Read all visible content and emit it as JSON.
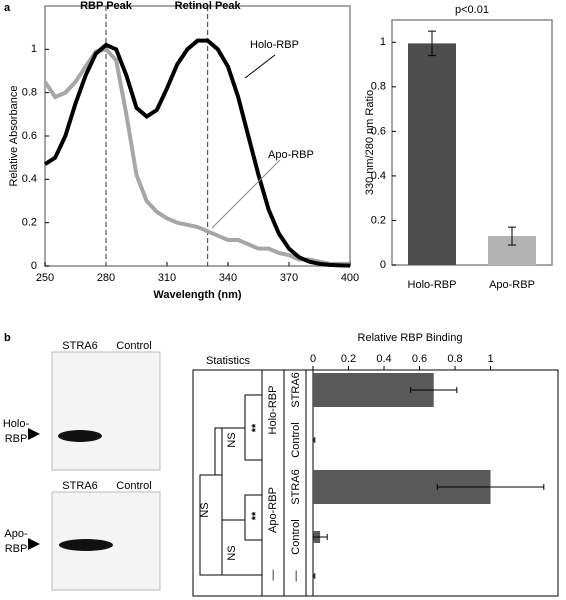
{
  "panel_labels": [
    "a",
    "b"
  ],
  "chart_data": [
    {
      "type": "line",
      "xlabel": "Wavelength (nm)",
      "ylabel": "Relative Absorbance",
      "x": [
        250,
        255,
        260,
        265,
        270,
        275,
        280,
        285,
        290,
        295,
        300,
        305,
        310,
        315,
        320,
        325,
        330,
        335,
        340,
        345,
        350,
        355,
        360,
        365,
        370,
        375,
        380,
        385,
        390,
        395,
        400
      ],
      "series": [
        {
          "name": "Holo-RBP",
          "color": "#000000",
          "values": [
            0.47,
            0.5,
            0.6,
            0.75,
            0.88,
            0.98,
            1.02,
            1.0,
            0.88,
            0.73,
            0.69,
            0.72,
            0.82,
            0.93,
            1.0,
            1.04,
            1.04,
            1.0,
            0.92,
            0.78,
            0.6,
            0.42,
            0.26,
            0.15,
            0.08,
            0.04,
            0.02,
            0.01,
            0.005,
            0.003,
            0.002
          ]
        },
        {
          "name": "Apo-RBP",
          "color": "#a6a6a6",
          "values": [
            0.85,
            0.78,
            0.8,
            0.85,
            0.92,
            0.99,
            1.0,
            0.95,
            0.7,
            0.42,
            0.3,
            0.25,
            0.22,
            0.2,
            0.19,
            0.18,
            0.16,
            0.14,
            0.12,
            0.12,
            0.1,
            0.08,
            0.08,
            0.06,
            0.05,
            0.03,
            0.03,
            0.02,
            0.01,
            0.01,
            0.01
          ]
        }
      ],
      "xlim": [
        250,
        400
      ],
      "ylim": [
        0,
        1.2
      ],
      "xticks": [
        250,
        280,
        310,
        340,
        370,
        400
      ],
      "yticks": [
        0,
        0.2,
        0.4,
        0.6,
        0.8,
        1
      ],
      "annotations": [
        {
          "text": "RBP Peak",
          "x": 280
        },
        {
          "text": "Retinol Peak",
          "x": 330
        }
      ]
    },
    {
      "type": "bar",
      "title": "p<0.01",
      "ylabel": "330 nm/280 nm Ratio",
      "categories": [
        "Holo-RBP",
        "Apo-RBP"
      ],
      "values": [
        0.995,
        0.13
      ],
      "errors": [
        0.055,
        0.04
      ],
      "colors": [
        "#4d4d4d",
        "#b3b3b3"
      ],
      "ylim": [
        0,
        1.1
      ],
      "yticks": [
        0,
        0.2,
        0.4,
        0.6,
        0.8,
        1
      ]
    },
    {
      "type": "barh",
      "title": "Relative RBP Binding",
      "categories": [
        "STRA6",
        "Control",
        "STRA6",
        "Control",
        "—"
      ],
      "groups": [
        "Holo-RBP",
        "Apo-RBP",
        "—"
      ],
      "values": [
        0.68,
        0.005,
        1.0,
        0.04,
        0.005
      ],
      "errors": [
        0.13,
        0.005,
        0.3,
        0.04,
        0.005
      ],
      "color": "#595959",
      "xlim": [
        0,
        1.38
      ],
      "xticks": [
        0,
        0.2,
        0.4,
        0.6,
        0.8,
        1
      ],
      "statistics": {
        "label": "Statistics",
        "marks": [
          "**",
          "NS",
          "**",
          "NS",
          "NS"
        ]
      }
    }
  ],
  "blots": [
    {
      "columns": [
        "STRA6",
        "Control"
      ],
      "row_label": [
        "Holo-",
        "RBP"
      ]
    },
    {
      "columns": [
        "STRA6",
        "Control"
      ],
      "row_label": [
        "Apo-",
        "RBP"
      ]
    }
  ]
}
